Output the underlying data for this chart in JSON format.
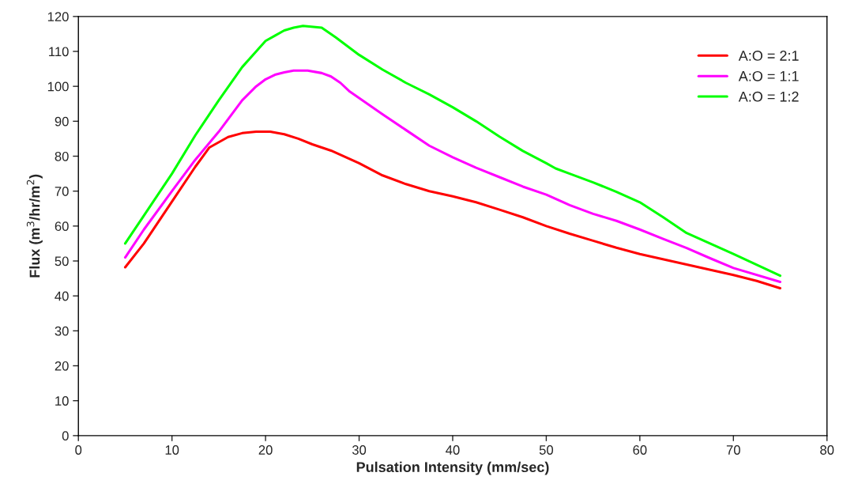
{
  "chart_data": {
    "type": "line",
    "xlabel": "Pulsation Intensity (mm/sec)",
    "ylabel": "Flux (m$^{3}$/hr/m$^{2}$)",
    "xlim": [
      0,
      80
    ],
    "xticks": [
      0,
      10,
      20,
      30,
      40,
      50,
      60,
      70,
      80
    ],
    "ylim": [
      0,
      120
    ],
    "yticks": [
      0,
      10,
      20,
      30,
      40,
      50,
      60,
      70,
      80,
      90,
      100,
      110,
      120
    ],
    "grid": false,
    "legend": "top right",
    "marker": "none",
    "line_style": "solid",
    "series": [
      {
        "name": "A:O = 2:1",
        "color": "#ff0000",
        "x": [
          5,
          7,
          10,
          12.5,
          14,
          16,
          17.5,
          19,
          20.5,
          22,
          23.5,
          25,
          27,
          30,
          32.5,
          35,
          37.5,
          40,
          42.5,
          45,
          47.5,
          50,
          52.5,
          55,
          57.5,
          60,
          65,
          70,
          72.5,
          75
        ],
        "values": [
          48.2,
          55,
          67,
          77,
          82.5,
          85.5,
          86.6,
          87,
          87,
          86.3,
          85,
          83.4,
          81.6,
          78,
          74.5,
          72,
          70,
          68.5,
          66.8,
          64.7,
          62.5,
          60,
          57.8,
          55.8,
          53.8,
          52,
          49,
          46,
          44.3,
          42.2
        ]
      },
      {
        "name": "A:O = 1:1",
        "color": "#ff00ff",
        "x": [
          5,
          7,
          10,
          12.5,
          15,
          17.5,
          19,
          20,
          21,
          22,
          23,
          24.5,
          26,
          27,
          28,
          29,
          32.5,
          35,
          37.5,
          40,
          42.5,
          45,
          47.5,
          50,
          52.5,
          55,
          57.5,
          60,
          62.5,
          65,
          67.5,
          70,
          75
        ],
        "values": [
          51,
          59,
          70,
          79,
          87,
          96,
          100,
          102,
          103.3,
          104,
          104.5,
          104.5,
          103.8,
          102.8,
          101,
          98.5,
          92,
          87.5,
          83,
          79.7,
          76.7,
          74,
          71.3,
          69,
          66,
          63.5,
          61.5,
          59,
          56.3,
          53.7,
          50.8,
          48,
          44
        ]
      },
      {
        "name": "A:O = 1:2",
        "color": "#00ff00",
        "x": [
          5,
          7,
          10,
          12.5,
          15,
          17.5,
          19,
          20,
          21,
          22,
          23,
          24,
          26,
          27.5,
          30,
          32.5,
          35,
          37.5,
          40,
          42.5,
          45,
          47.5,
          50,
          51,
          52.5,
          55,
          57.5,
          60,
          62.5,
          65,
          67.5,
          70,
          75
        ],
        "values": [
          55,
          63,
          75,
          86,
          96,
          105.5,
          110,
          113,
          114.5,
          116,
          116.8,
          117.3,
          116.8,
          114,
          109,
          104.8,
          101,
          97.7,
          94,
          90,
          85.6,
          81.5,
          78,
          76.5,
          75,
          72.5,
          69.8,
          66.8,
          62.5,
          58,
          55,
          52,
          45.8
        ]
      }
    ]
  }
}
